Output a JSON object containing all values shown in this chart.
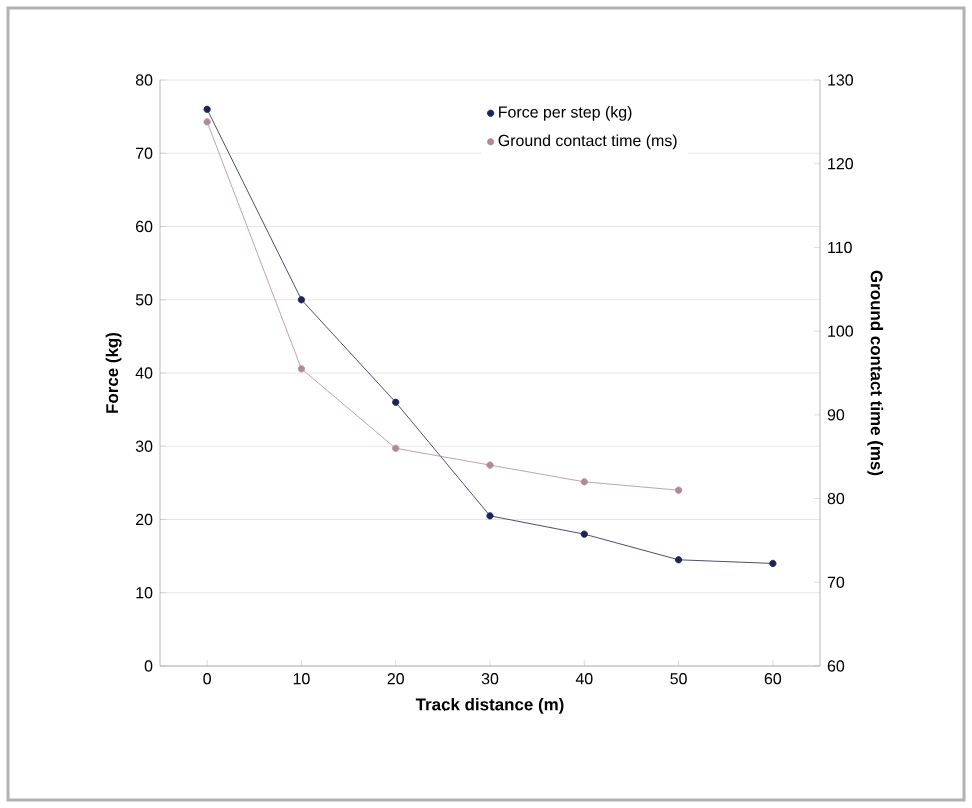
{
  "chart_data": {
    "type": "line",
    "xlabel": "Track distance (m)",
    "ylabel": "Force (kg)",
    "y2label": "Ground contact time (ms)",
    "x": [
      0,
      10,
      20,
      30,
      40,
      50,
      60
    ],
    "series": [
      {
        "name": "Force per step (kg)",
        "color": "#1c2357",
        "values": [
          76,
          50,
          36,
          20.5,
          18,
          14.5,
          14
        ]
      },
      {
        "name": "Ground contact time (ms)",
        "color": "#b08a94",
        "axis": "y2",
        "values": [
          125,
          95.5,
          86,
          84,
          82,
          81,
          null
        ]
      }
    ],
    "xlim": [
      -5,
      65
    ],
    "xticks": [
      0,
      10,
      20,
      30,
      40,
      50,
      60
    ],
    "ylim": [
      0,
      80
    ],
    "yticks": [
      0,
      10,
      20,
      30,
      40,
      50,
      60,
      70,
      80
    ],
    "y2lim": [
      60,
      130
    ],
    "y2ticks": [
      60,
      70,
      80,
      90,
      100,
      110,
      120,
      130
    ],
    "grid": "y",
    "legend": "top right",
    "marker": "circle",
    "line_style": "solid"
  }
}
